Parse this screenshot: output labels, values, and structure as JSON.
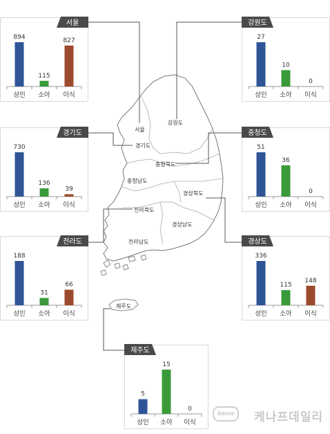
{
  "colors": {
    "adult": "#2f5597",
    "child": "#3a9a3a",
    "transplant": "#9c4a2e",
    "header_bg": "#4a4a4a",
    "header_text": "#ffffff",
    "card_border": "#d8d8d8",
    "map_stroke": "#777777",
    "connector": "#555555"
  },
  "chart_data": [
    {
      "type": "bar",
      "region": "서울",
      "categories": [
        "성인",
        "소아",
        "이식"
      ],
      "values": [
        894,
        115,
        827
      ]
    },
    {
      "type": "bar",
      "region": "강원도",
      "categories": [
        "성인",
        "소아",
        "이식"
      ],
      "values": [
        27,
        10,
        0
      ]
    },
    {
      "type": "bar",
      "region": "경기도",
      "categories": [
        "성인",
        "소아",
        "이식"
      ],
      "values": [
        730,
        136,
        39
      ]
    },
    {
      "type": "bar",
      "region": "충청도",
      "categories": [
        "성인",
        "소아",
        "이식"
      ],
      "values": [
        51,
        36,
        0
      ]
    },
    {
      "type": "bar",
      "region": "전라도",
      "categories": [
        "성인",
        "소아",
        "이식"
      ],
      "values": [
        188,
        31,
        66
      ]
    },
    {
      "type": "bar",
      "region": "경상도",
      "categories": [
        "성인",
        "소아",
        "이식"
      ],
      "values": [
        336,
        115,
        148
      ]
    },
    {
      "type": "bar",
      "region": "제주도",
      "categories": [
        "성인",
        "소아",
        "이식"
      ],
      "values": [
        5,
        15,
        0
      ]
    }
  ],
  "map_labels": {
    "seoul": "서울",
    "gyeonggi": "경기도",
    "gangwon": "강원도",
    "chungbuk": "충청북도",
    "chungnam": "충청남도",
    "gyeongbuk": "경상북도",
    "gyeongnam": "경상남도",
    "jeonbuk": "전라북도",
    "jeonnam": "전라남도",
    "jeju": "제주도"
  },
  "watermark": {
    "badge": "kena",
    "text": "케나프데일리"
  }
}
